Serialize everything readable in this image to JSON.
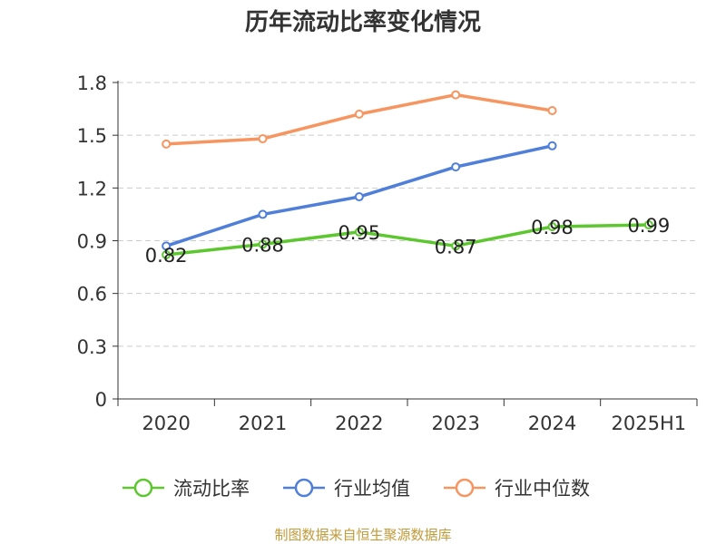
{
  "title": "历年流动比率变化情况",
  "source": "制图数据来自恒生聚源数据库",
  "colors": {
    "current_ratio": "#5cc72e",
    "industry_avg": "#4f7fd9",
    "industry_median": "#f79560",
    "grid": "#cccccc",
    "axis": "#333333",
    "text": "#333333",
    "source": "#c19a3a"
  },
  "chart_data": {
    "type": "line",
    "title": "历年流动比率变化情况",
    "categories": [
      "2020",
      "2021",
      "2022",
      "2023",
      "2024",
      "2025H1"
    ],
    "ylim": [
      0,
      1.8
    ],
    "yticks": [
      "0",
      "0.3",
      "0.6",
      "0.9",
      "1.2",
      "1.5",
      "1.8"
    ],
    "grid": true,
    "legend_position": "bottom",
    "series": [
      {
        "name": "流动比率",
        "key": "current_ratio",
        "values": [
          0.82,
          0.88,
          0.95,
          0.87,
          0.98,
          0.99
        ],
        "labels": [
          "0.82",
          "0.88",
          "0.95",
          "0.87",
          "0.98",
          "0.99"
        ]
      },
      {
        "name": "行业均值",
        "key": "industry_avg",
        "values": [
          0.87,
          1.05,
          1.15,
          1.32,
          1.44,
          null
        ]
      },
      {
        "name": "行业中位数",
        "key": "industry_median",
        "values": [
          1.45,
          1.48,
          1.62,
          1.73,
          1.64,
          null
        ]
      }
    ]
  }
}
